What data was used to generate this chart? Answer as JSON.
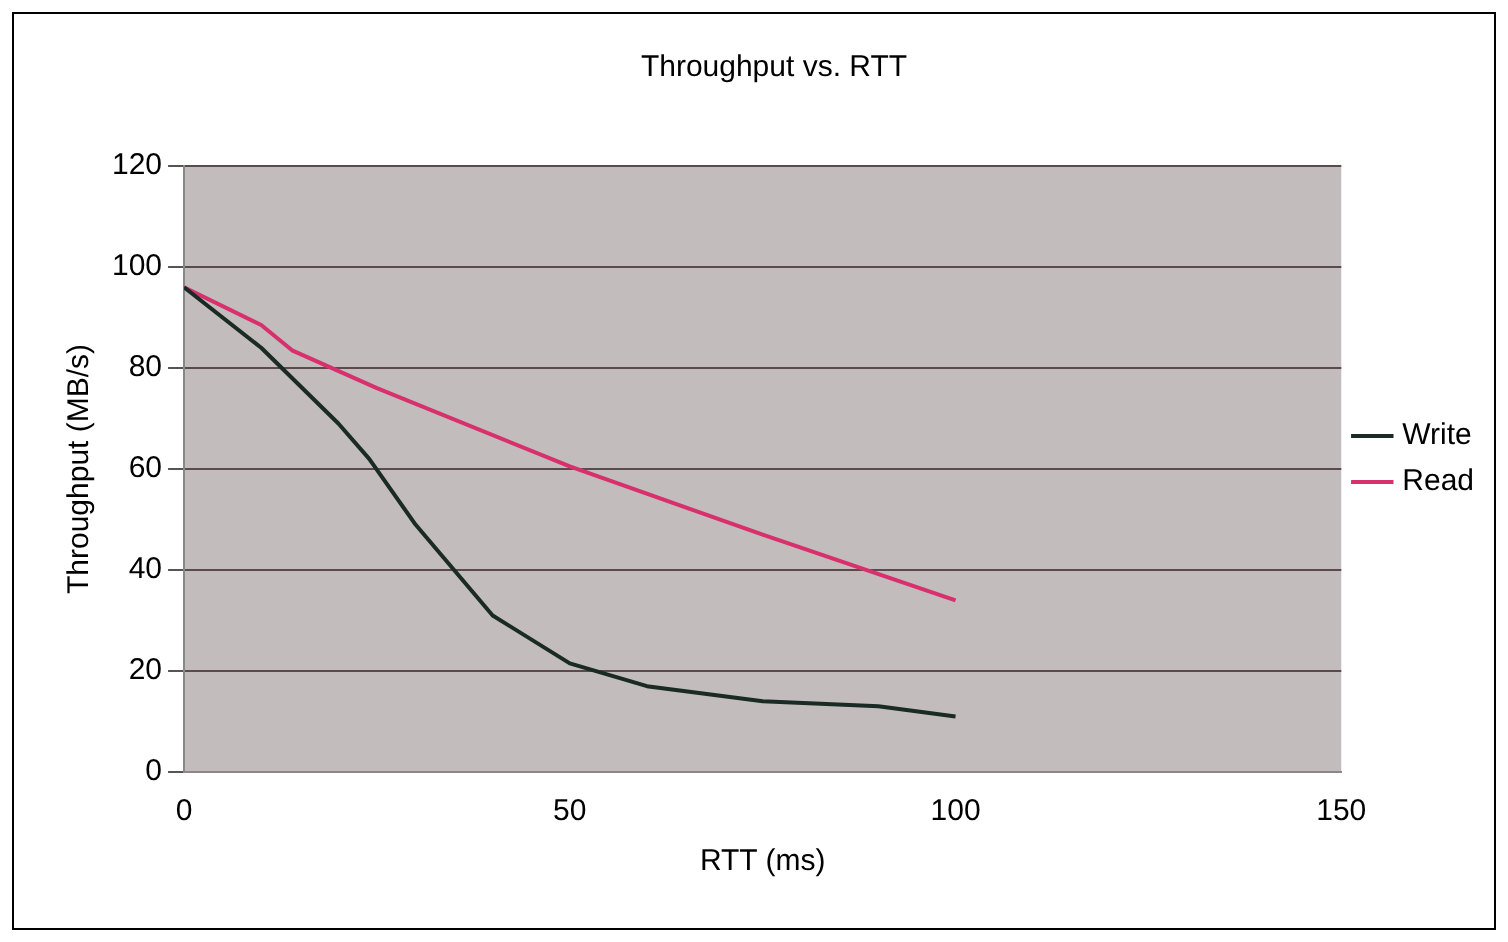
{
  "chart_data": {
    "type": "line",
    "title": "Throughput vs. RTT",
    "xlabel": "RTT (ms)",
    "ylabel": "Throughput (MB/s)",
    "series": [
      {
        "name": "Write",
        "color": "#1a2a24",
        "x": [
          0,
          10,
          20,
          24,
          30,
          40,
          50,
          60,
          75,
          90,
          100
        ],
        "values": [
          96,
          84,
          69,
          62,
          49,
          31,
          21.5,
          17,
          14,
          13,
          11
        ]
      },
      {
        "name": "Read",
        "color": "#d8306c",
        "x": [
          0,
          10,
          14,
          25,
          50,
          75,
          100
        ],
        "values": [
          96,
          88.5,
          83.5,
          76,
          60.5,
          47,
          34
        ]
      }
    ],
    "xlim": [
      0,
      150
    ],
    "xticks": [
      0,
      50,
      100,
      150
    ],
    "ylim": [
      0,
      120
    ],
    "yticks": [
      0,
      20,
      40,
      60,
      80,
      100,
      120
    ],
    "grid": "y",
    "legend": "right",
    "marker": "none",
    "line_style": "solid"
  }
}
